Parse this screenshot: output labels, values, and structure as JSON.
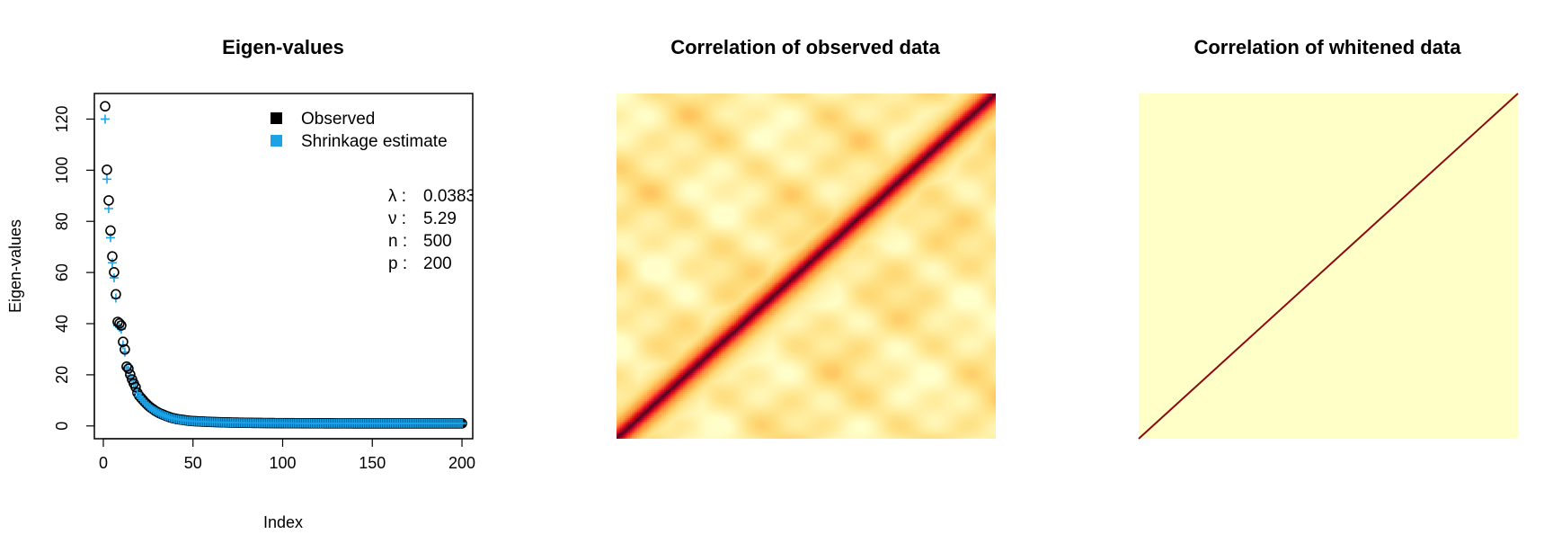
{
  "chart_data": [
    {
      "type": "scatter",
      "title": "Eigen-values",
      "xlabel": "Index",
      "ylabel": "Eigen-values",
      "xlim": [
        -5,
        206
      ],
      "ylim": [
        -5,
        130
      ],
      "x_ticks": [
        0,
        50,
        100,
        150,
        200
      ],
      "y_ticks": [
        0,
        20,
        40,
        60,
        80,
        100,
        120
      ],
      "grid": false,
      "legend_position": "top-right",
      "series": [
        {
          "name": "Observed",
          "marker": "circle",
          "color": "#000000",
          "values": [
            125,
            100.2,
            88.2,
            76.4,
            66.3,
            60.1,
            51.5,
            40.7,
            40.1,
            39.3,
            32.9,
            29.9,
            23.2,
            22.4,
            20.1,
            18.2,
            16.6,
            15.2,
            13.0,
            11.8,
            11.0,
            10.2,
            9.4,
            8.7,
            8.0,
            7.4,
            6.9,
            6.4,
            5.9,
            5.5,
            5.1,
            4.8,
            4.5,
            4.2,
            3.9,
            3.7,
            3.4,
            3.2,
            3.0,
            2.9,
            2.7,
            2.6,
            2.5,
            2.4,
            2.3,
            2.2,
            2.1,
            2.0,
            1.95,
            1.9
          ]
        },
        {
          "name": "Shrinkage estimate",
          "marker": "plus",
          "color": "#1ea2e6",
          "values": [
            120,
            96.5,
            85.0,
            73.6,
            63.8,
            57.9,
            50.0,
            39.2,
            38.6,
            37.9,
            31.7,
            28.9,
            22.7,
            21.9,
            19.7,
            17.8,
            16.3,
            14.9,
            12.8,
            11.6,
            10.8,
            10.0,
            9.2,
            8.5,
            7.8,
            7.2,
            6.7,
            6.2,
            5.8,
            5.4,
            5.0,
            4.7,
            4.4,
            4.1,
            3.8,
            3.6,
            3.3,
            3.1,
            2.9,
            2.8,
            2.6,
            2.5,
            2.4,
            2.3,
            2.2,
            2.1,
            2.0,
            1.95,
            1.9,
            1.85
          ]
        }
      ],
      "tail": {
        "count": 200,
        "asymptote": 1.0
      },
      "annotations": [
        {
          "label": "λ :",
          "value": "0.0383"
        },
        {
          "label": "ν :",
          "value": "5.29"
        },
        {
          "label": "n :",
          "value": "500"
        },
        {
          "label": "p :",
          "value": "200"
        }
      ]
    },
    {
      "type": "heatmap",
      "title": "Correlation of observed data",
      "size": 200,
      "color_scale": [
        "#ffffcc",
        "#ffeda0",
        "#fed976",
        "#feb24c",
        "#fd8d3c",
        "#fc4e2a",
        "#e31a1c",
        "#bd0026",
        "#800026",
        "#4a0a1a"
      ]
    },
    {
      "type": "heatmap",
      "title": "Correlation of whitened data",
      "size": 200,
      "background_color": "#ffffc8",
      "diagonal_color": "#8b0a14"
    }
  ]
}
